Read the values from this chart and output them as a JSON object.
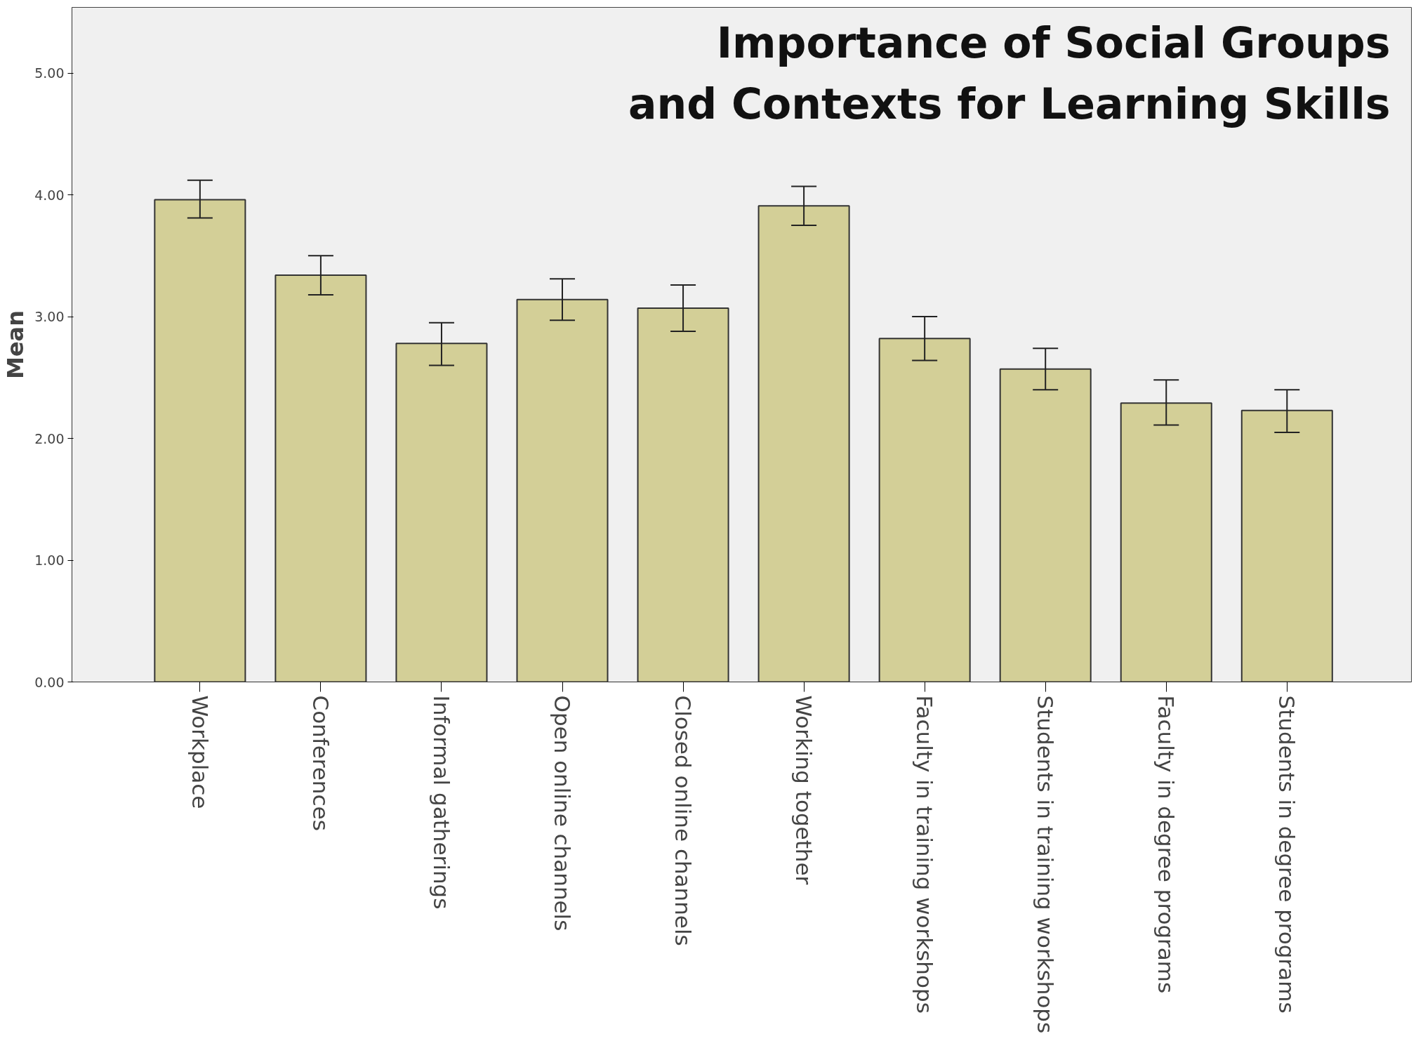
{
  "chart_data": {
    "type": "bar",
    "title": "Importance of Social Groups\nand Contexts for Learning Skills",
    "ylabel": "Mean",
    "categories": [
      "Workplace",
      "Conferences",
      "Informal gatherings",
      "Open online channels",
      "Closed online channels",
      "Working together",
      "Faculty in training workshops",
      "Students in training workshops",
      "Faculty in degree programs",
      "Students in degree programs"
    ],
    "values": [
      3.96,
      3.34,
      2.78,
      3.14,
      3.07,
      3.91,
      2.82,
      2.57,
      2.29,
      2.23
    ],
    "errors": [
      [
        3.81,
        4.12
      ],
      [
        3.18,
        3.5
      ],
      [
        2.6,
        2.95
      ],
      [
        2.97,
        3.31
      ],
      [
        2.88,
        3.26
      ],
      [
        3.75,
        4.07
      ],
      [
        2.64,
        3.0
      ],
      [
        2.4,
        2.74
      ],
      [
        2.11,
        2.48
      ],
      [
        2.05,
        2.4
      ]
    ],
    "color": "#d3cf97",
    "ylim": [
      0,
      5.54
    ],
    "yticks": [
      {
        "value": 0,
        "label": "0.00"
      },
      {
        "value": 1,
        "label": "1.00"
      },
      {
        "value": 2,
        "label": "2.00"
      },
      {
        "value": 3,
        "label": "3.00"
      },
      {
        "value": 4,
        "label": "4.00"
      },
      {
        "value": 5,
        "label": "5.00"
      }
    ],
    "grid": false
  }
}
